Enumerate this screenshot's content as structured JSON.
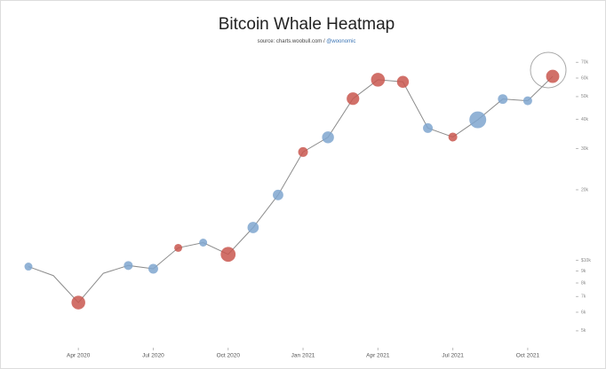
{
  "chart_data": {
    "type": "line",
    "title": "Bitcoin Whale Heatmap",
    "subtitle": "source: charts.woobull.com /",
    "subtitle_handle": "@woonomic",
    "x": [
      "2020-02",
      "2020-03",
      "2020-04",
      "2020-05",
      "2020-06",
      "2020-07",
      "2020-08",
      "2020-09",
      "2020-10",
      "2020-11",
      "2020-12",
      "2021-01",
      "2021-02",
      "2021-03",
      "2021-04",
      "2021-05",
      "2021-06",
      "2021-07",
      "2021-08",
      "2021-09",
      "2021-10",
      "2021-11"
    ],
    "series": [
      {
        "color": "#8c8c8c",
        "values": [
          9400,
          8600,
          6600,
          8800,
          9500,
          9200,
          11300,
          11900,
          10600,
          13800,
          19000,
          29000,
          33500,
          49000,
          59000,
          57800,
          36700,
          33600,
          39800,
          48800,
          48000,
          61000
        ]
      },
      {
        "color": "#c9574f",
        "values": [
          null,
          null,
          6600,
          null,
          null,
          null,
          11300,
          null,
          10600,
          null,
          null,
          29000,
          null,
          49000,
          59000,
          57800,
          null,
          33600,
          null,
          null,
          null,
          61000
        ],
        "sizes": [
          null,
          null,
          60,
          null,
          null,
          null,
          20,
          null,
          70,
          null,
          null,
          30,
          null,
          50,
          60,
          45,
          null,
          25,
          null,
          null,
          null,
          55
        ]
      },
      {
        "color": "#7fa6cf",
        "values": [
          9400,
          null,
          null,
          null,
          9500,
          9200,
          null,
          11900,
          null,
          13800,
          19000,
          null,
          33500,
          null,
          null,
          null,
          36700,
          null,
          39800,
          48800,
          48000,
          null
        ],
        "sizes": [
          20,
          null,
          null,
          null,
          25,
          30,
          null,
          20,
          null,
          40,
          35,
          null,
          45,
          null,
          null,
          null,
          30,
          null,
          90,
          30,
          25,
          null
        ]
      }
    ],
    "xlim": [
      "2020-02",
      "2021-11"
    ],
    "xticks": [
      {
        "value": "2020-04",
        "label": "Apr 2020"
      },
      {
        "value": "2020-07",
        "label": "Jul 2020"
      },
      {
        "value": "2020-10",
        "label": "Oct 2020"
      },
      {
        "value": "2021-01",
        "label": "Jan 2021"
      },
      {
        "value": "2021-04",
        "label": "Apr 2021"
      },
      {
        "value": "2021-07",
        "label": "Jul 2021"
      },
      {
        "value": "2021-10",
        "label": "Oct 2021"
      }
    ],
    "ylim": [
      4500,
      80000
    ],
    "yticks": [
      {
        "value": 5000,
        "label": "5k"
      },
      {
        "value": 6000,
        "label": "6k"
      },
      {
        "value": 7000,
        "label": "7k"
      },
      {
        "value": 8000,
        "label": "8k"
      },
      {
        "value": 9000,
        "label": "9k"
      },
      {
        "value": 10000,
        "label": "$10k"
      },
      {
        "value": 20000,
        "label": "20k"
      },
      {
        "value": 30000,
        "label": "30k"
      },
      {
        "value": 40000,
        "label": "40k"
      },
      {
        "value": 50000,
        "label": "50k"
      },
      {
        "value": 60000,
        "label": "60k"
      },
      {
        "value": 70000,
        "label": "70k"
      }
    ],
    "log_scale": true
  }
}
